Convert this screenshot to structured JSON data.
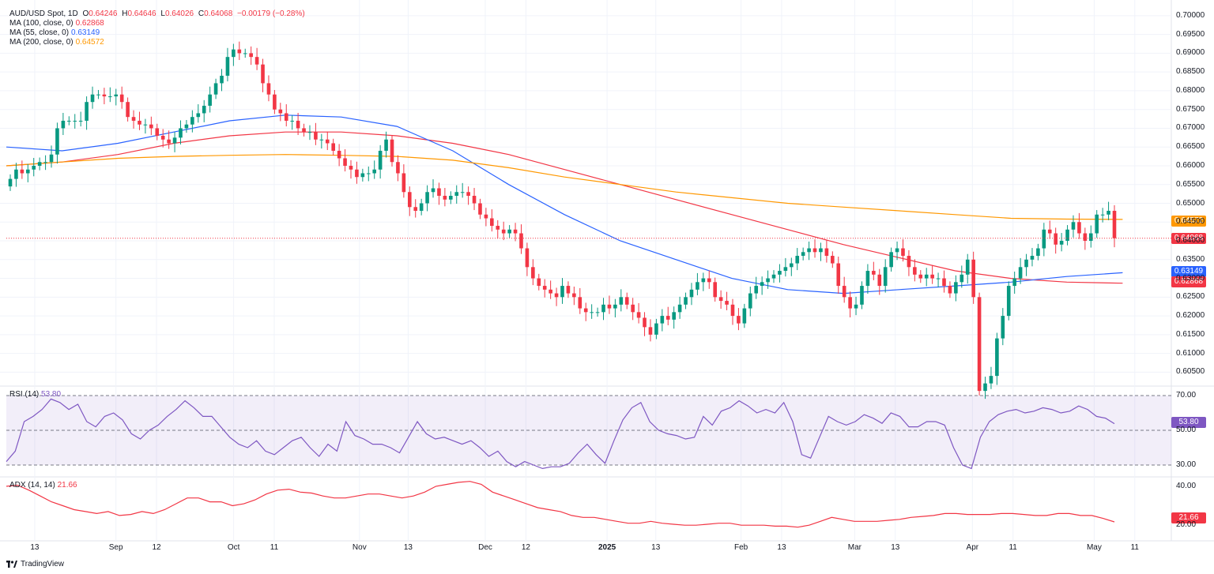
{
  "legend": {
    "symbol": "AUD/USD Spot, 1D",
    "o_label": "O",
    "o": "0.64246",
    "h_label": "H",
    "h": "0.64646",
    "l_label": "L",
    "l": "0.64026",
    "c_label": "C",
    "c": "0.64068",
    "change": "−0.00179 (−0.28%)",
    "ma100_label": "MA (100, close, 0)",
    "ma100": "0.62868",
    "ma55_label": "MA (55, close, 0)",
    "ma55": "0.63149",
    "ma200_label": "MA (200, close, 0)",
    "ma200": "0.64572"
  },
  "colors": {
    "up": "#089981",
    "down": "#f23645",
    "ma100": "#f23645",
    "ma55": "#2962ff",
    "ma200": "#ff9800",
    "rsi": "#7e57c2",
    "adx": "#f23645"
  },
  "badges": {
    "ma200": "0.64572",
    "last": "0.64068",
    "ma55": "0.63149",
    "ma100": "0.62868",
    "rsi": "53.80",
    "adx": "21.66"
  },
  "rsi_pane": {
    "label": "RSI (14)",
    "value": "53.80",
    "ticks": [
      "70.00",
      "50.00",
      "30.00"
    ]
  },
  "adx_pane": {
    "label": "ADX (14, 14)",
    "value": "21.66",
    "ticks": [
      "40.00",
      "20.00"
    ]
  },
  "price_ticks": [
    "0.70000",
    "0.69500",
    "0.69000",
    "0.68500",
    "0.68000",
    "0.67500",
    "0.67000",
    "0.66500",
    "0.66000",
    "0.65500",
    "0.65000",
    "0.64500",
    "0.64000",
    "0.63500",
    "0.63000",
    "0.62500",
    "0.62000",
    "0.61500",
    "0.61000",
    "0.60500"
  ],
  "x_ticks": [
    "13",
    "Sep",
    "12",
    "Oct",
    "11",
    "Nov",
    "13",
    "Dec",
    "12",
    "2025",
    "13",
    "Feb",
    "13",
    "Mar",
    "13",
    "Apr",
    "11",
    "May",
    "11"
  ],
  "brand": "TradingView",
  "chart_data": {
    "type": "candlestick",
    "title": "AUD/USD Spot, 1D",
    "ylim": [
      0.6015,
      0.7025
    ],
    "x_range": [
      "2024-08-06",
      "2025-05-20"
    ],
    "x_ticks": [
      {
        "label": "13",
        "date": "2024-08-13"
      },
      {
        "label": "Sep",
        "date": "2024-09-02"
      },
      {
        "label": "12",
        "date": "2024-09-12"
      },
      {
        "label": "Oct",
        "date": "2024-10-01"
      },
      {
        "label": "11",
        "date": "2024-10-11"
      },
      {
        "label": "Nov",
        "date": "2024-11-01"
      },
      {
        "label": "13",
        "date": "2024-11-13"
      },
      {
        "label": "Dec",
        "date": "2024-12-02"
      },
      {
        "label": "12",
        "date": "2024-12-12"
      },
      {
        "label": "2025",
        "date": "2025-01-01"
      },
      {
        "label": "13",
        "date": "2025-01-13"
      },
      {
        "label": "Feb",
        "date": "2025-02-03"
      },
      {
        "label": "13",
        "date": "2025-02-13"
      },
      {
        "label": "Mar",
        "date": "2025-03-03"
      },
      {
        "label": "13",
        "date": "2025-03-13"
      },
      {
        "label": "Apr",
        "date": "2025-04-01"
      },
      {
        "label": "11",
        "date": "2025-04-11"
      },
      {
        "label": "May",
        "date": "2025-05-01"
      },
      {
        "label": "11",
        "date": "2025-05-11"
      }
    ],
    "close": [
      [
        0.6565,
        0.659,
        0.658,
        0.659,
        0.66,
        0.661,
        0.661,
        0.663,
        0.67,
        0.672,
        0.672,
        0.672,
        0.672,
        0.677,
        0.679,
        0.679,
        0.6785,
        0.6785,
        0.679,
        0.677,
        0.673,
        0.672,
        0.671
      ],
      [
        0.671,
        0.67,
        0.668,
        0.667,
        0.666,
        0.6675,
        0.67,
        0.671,
        0.673,
        0.674,
        0.676,
        0.679,
        0.682,
        0.684,
        0.689,
        0.691,
        0.69,
        0.69,
        0.689,
        0.687,
        0.682,
        0.679,
        0.675,
        0.674,
        0.672,
        0.672,
        0.67,
        0.669,
        0.669
      ],
      [
        0.667,
        0.667,
        0.666,
        0.664,
        0.662,
        0.66,
        0.659,
        0.657,
        0.658,
        0.658,
        0.659,
        0.664,
        0.667,
        0.661,
        0.658,
        0.653,
        0.649,
        0.648,
        0.65,
        0.653,
        0.654,
        0.652,
        0.651,
        0.652,
        0.653,
        0.653,
        0.652,
        0.65,
        0.647,
        0.646,
        0.644,
        0.643,
        0.642,
        0.643,
        0.642,
        0.638
      ],
      [
        0.633,
        0.63,
        0.628,
        0.627,
        0.626,
        0.625,
        0.628,
        0.626,
        0.625,
        0.622,
        0.621,
        0.621,
        0.621,
        0.623,
        0.622,
        0.623,
        0.625,
        0.623,
        0.621,
        0.6195,
        0.617,
        0.615,
        0.618,
        0.62,
        0.619,
        0.621,
        0.623,
        0.625,
        0.627,
        0.629,
        0.63
      ],
      [
        0.629,
        0.625,
        0.624,
        0.623,
        0.62,
        0.618,
        0.622,
        0.626,
        0.628,
        0.629,
        0.63,
        0.631,
        0.632,
        0.633,
        0.634,
        0.636,
        0.637,
        0.638,
        0.637,
        0.638,
        0.636,
        0.634,
        0.628,
        0.625,
        0.622,
        0.623,
        0.628,
        0.632,
        0.631,
        0.628,
        0.633,
        0.637,
        0.638,
        0.636,
        0.633,
        0.631,
        0.63,
        0.631,
        0.63,
        0.63,
        0.628,
        0.626,
        0.629,
        0.631,
        0.635
      ],
      [
        0.625,
        0.6,
        0.602,
        0.604,
        0.614,
        0.62,
        0.628,
        0.63,
        0.633,
        0.635,
        0.636,
        0.638,
        0.643,
        0.642,
        0.639,
        0.64,
        0.643,
        0.645,
        0.642,
        0.64,
        0.642,
        0.647,
        0.647,
        0.648,
        0.6407
      ]
    ],
    "close_note": "Approximate daily closes in order, oldest first, from early Aug 2024 to May 2025.",
    "last_close": 0.64068,
    "series": [
      {
        "name": "MA (100, close, 0)",
        "last": 0.62868,
        "values": [
          0.66,
          0.661,
          0.663,
          0.666,
          0.668,
          0.669,
          0.669,
          0.668,
          0.666,
          0.663,
          0.659,
          0.655,
          0.651,
          0.647,
          0.643,
          0.639,
          0.6355,
          0.632,
          0.63,
          0.629,
          0.6287
        ]
      },
      {
        "name": "MA (55, close, 0)",
        "last": 0.63149,
        "values": [
          0.665,
          0.664,
          0.666,
          0.669,
          0.672,
          0.6735,
          0.673,
          0.6705,
          0.664,
          0.655,
          0.647,
          0.64,
          0.635,
          0.63,
          0.627,
          0.626,
          0.627,
          0.628,
          0.629,
          0.6305,
          0.6315
        ]
      },
      {
        "name": "MA (200, close, 0)",
        "last": 0.64572,
        "values": [
          0.66,
          0.661,
          0.662,
          0.6625,
          0.6628,
          0.663,
          0.6628,
          0.6625,
          0.6615,
          0.6595,
          0.657,
          0.655,
          0.653,
          0.6515,
          0.65,
          0.649,
          0.648,
          0.647,
          0.646,
          0.6458,
          0.6457
        ]
      }
    ],
    "ma_x_range": [
      "2024-08-06",
      "2025-05-08"
    ],
    "rsi": {
      "label": "RSI (14)",
      "last": 53.8,
      "ylim": [
        25,
        75
      ],
      "guides": [
        70,
        50,
        30
      ],
      "values": [
        32,
        38,
        55,
        58,
        62,
        68,
        66,
        62,
        65,
        55,
        52,
        58,
        60,
        56,
        48,
        45,
        50,
        53,
        58,
        62,
        67,
        63,
        58,
        58,
        52,
        46,
        42,
        40,
        44,
        38,
        36,
        40,
        44,
        46,
        40,
        35,
        42,
        38,
        55,
        47,
        45,
        42,
        42,
        40,
        37,
        46,
        55,
        48,
        45,
        46,
        44,
        42,
        44,
        40,
        35,
        38,
        32,
        29,
        32,
        30,
        28,
        29,
        29,
        31,
        37,
        42,
        36,
        31,
        44,
        56,
        63,
        66,
        55,
        50,
        48,
        47,
        45,
        46,
        58,
        53,
        61,
        63,
        67,
        64,
        60,
        62,
        60,
        66,
        55,
        36,
        34,
        46,
        58,
        55,
        53,
        55,
        59,
        57,
        54,
        60,
        58,
        52,
        52,
        55,
        55,
        53,
        40,
        30,
        28,
        46,
        55,
        59,
        61,
        62,
        60,
        61,
        63,
        62,
        60,
        61,
        64,
        62,
        58,
        57,
        53.8
      ]
    },
    "adx": {
      "label": "ADX (14, 14)",
      "last": 21.66,
      "ylim": [
        14,
        44
      ],
      "values": [
        40,
        40.5,
        38,
        35,
        32,
        30,
        28,
        27,
        26,
        27,
        25,
        25.5,
        27,
        26,
        28,
        31,
        34,
        34,
        32,
        32,
        30,
        31,
        33,
        36,
        38,
        38.5,
        37,
        36.5,
        35,
        34,
        34,
        35,
        36,
        36,
        35,
        34,
        35,
        37,
        40,
        41,
        42,
        42.5,
        41,
        37,
        35,
        33,
        31,
        29,
        28,
        27,
        25,
        24,
        24,
        23,
        22,
        21,
        21,
        22,
        21,
        20.5,
        20,
        20,
        20.5,
        21,
        21,
        20,
        20,
        20,
        19.5,
        19.5,
        19,
        20,
        22,
        24,
        23,
        22,
        22,
        22,
        22.5,
        23,
        24,
        24.5,
        25,
        26,
        26,
        25.5,
        25.5,
        25.5,
        26,
        26,
        25.5,
        25,
        25,
        26,
        26,
        25,
        25,
        23.5,
        21.7
      ]
    }
  }
}
